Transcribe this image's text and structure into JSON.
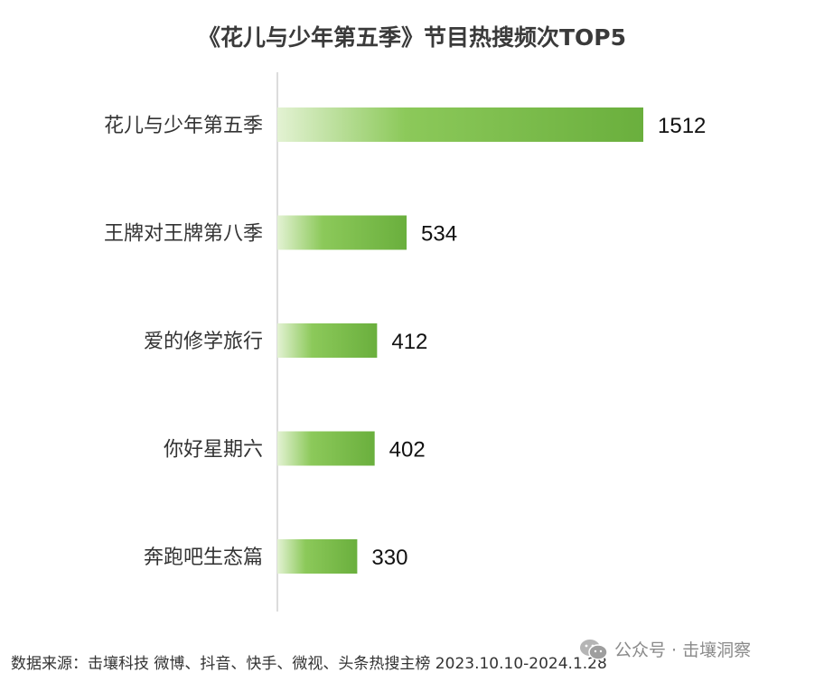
{
  "chart_data": {
    "type": "bar",
    "orientation": "horizontal",
    "title": "《花儿与少年第五季》节目热搜频次TOP5",
    "categories": [
      "花儿与少年第五季",
      "王牌对王牌第八季",
      "爱的修学旅行",
      "你好星期六",
      "奔跑吧生态篇"
    ],
    "values": [
      1512,
      534,
      412,
      402,
      330
    ],
    "value_labels": [
      "1512",
      "534",
      "412",
      "402",
      "330"
    ],
    "xlim": [
      0,
      1512
    ],
    "grid": false,
    "legend": "none",
    "bar_gradient": [
      "#e3f2d3",
      "#6aaf3d"
    ]
  },
  "footer": {
    "source": "数据来源：击壤科技  微博、抖音、快手、微视、头条热搜主榜 2023.10.10-2024.1.28"
  },
  "watermark": {
    "icon": "wechat-icon",
    "text": "公众号 · 击壤洞察"
  }
}
